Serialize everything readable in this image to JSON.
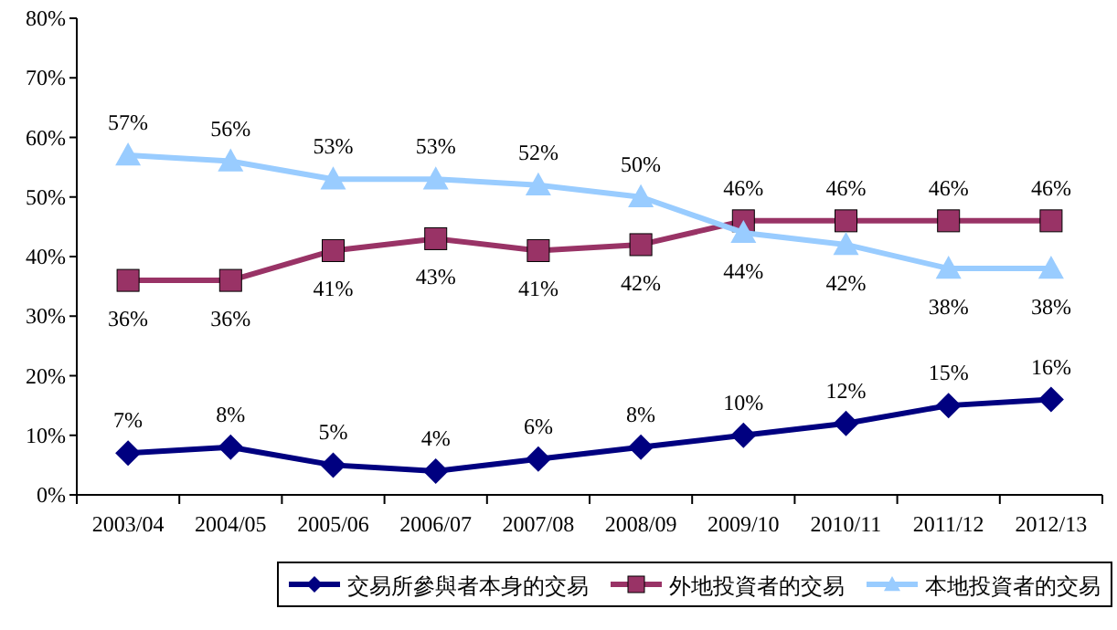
{
  "chart_data": {
    "type": "line",
    "categories": [
      "2003/04",
      "2004/05",
      "2005/06",
      "2006/07",
      "2007/08",
      "2008/09",
      "2009/10",
      "2010/11",
      "2011/12",
      "2012/13"
    ],
    "series": [
      {
        "name": "交易所參與者本身的交易",
        "color": "#000080",
        "marker": "diamond",
        "values": [
          7,
          8,
          5,
          4,
          6,
          8,
          10,
          12,
          15,
          16
        ],
        "value_labels": [
          "7%",
          "8%",
          "5%",
          "4%",
          "6%",
          "8%",
          "10%",
          "12%",
          "15%",
          "16%"
        ]
      },
      {
        "name": "外地投資者的交易",
        "color": "#993366",
        "marker": "square",
        "values": [
          36,
          36,
          41,
          43,
          41,
          42,
          46,
          46,
          46,
          46
        ],
        "value_labels": [
          "36%",
          "36%",
          "41%",
          "43%",
          "41%",
          "42%",
          "46%",
          "46%",
          "46%",
          "46%"
        ]
      },
      {
        "name": "本地投資者的交易",
        "color": "#99ccff",
        "marker": "triangle",
        "values": [
          57,
          56,
          53,
          53,
          52,
          50,
          44,
          42,
          38,
          38
        ],
        "value_labels": [
          "57%",
          "56%",
          "53%",
          "53%",
          "52%",
          "50%",
          "44%",
          "42%",
          "38%",
          "38%"
        ]
      }
    ],
    "ylim": [
      0,
      80
    ],
    "yticks": [
      {
        "value": 0,
        "label": "0%"
      },
      {
        "value": 10,
        "label": "10%"
      },
      {
        "value": 20,
        "label": "20%"
      },
      {
        "value": 30,
        "label": "30%"
      },
      {
        "value": 40,
        "label": "40%"
      },
      {
        "value": 50,
        "label": "50%"
      },
      {
        "value": 60,
        "label": "60%"
      },
      {
        "value": 70,
        "label": "70%"
      },
      {
        "value": 80,
        "label": "80%"
      }
    ],
    "legend": "bottom",
    "grid": false
  }
}
